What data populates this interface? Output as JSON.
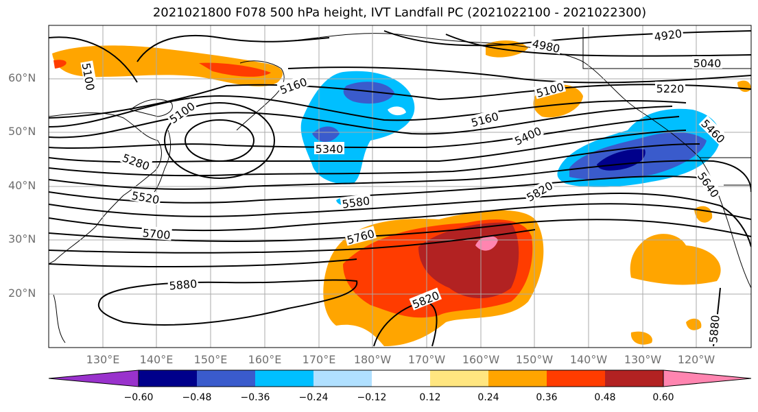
{
  "title": "2021021800 F078 500 hPa height, IVT Landfall PC (2021022100 - 2021022300)",
  "latitude_labels": [
    "60°N",
    "50°N",
    "40°N",
    "30°N",
    "20°N"
  ],
  "longitude_labels": [
    "130°E",
    "140°E",
    "150°E",
    "160°E",
    "170°E",
    "180°W",
    "170°W",
    "160°W",
    "150°W",
    "140°W",
    "130°W",
    "120°W"
  ],
  "contour_labels": [
    "5100",
    "5100",
    "5160",
    "5100",
    "5280",
    "5520",
    "5700",
    "5880",
    "5340",
    "5580",
    "5760",
    "5820",
    "4980",
    "4920",
    "5040",
    "5220",
    "5100",
    "5160",
    "5400",
    "5460",
    "5640",
    "5820",
    "5880"
  ],
  "colorbar": {
    "tick_labels": [
      "−0.60",
      "−0.48",
      "−0.36",
      "−0.24",
      "−0.12",
      "0.12",
      "0.24",
      "0.36",
      "0.48",
      "0.60"
    ],
    "colors": [
      "#9932cc",
      "#00008b",
      "#3a5bcc",
      "#00bfff",
      "#b0e0ff",
      "#ffffff",
      "#ffe680",
      "#ffa500",
      "#ff3c00",
      "#b22222",
      "#ff85b0"
    ]
  },
  "field_colors": {
    "land_outline": "#000000",
    "grid": "#aaaaaa",
    "contour": "#000000"
  }
}
